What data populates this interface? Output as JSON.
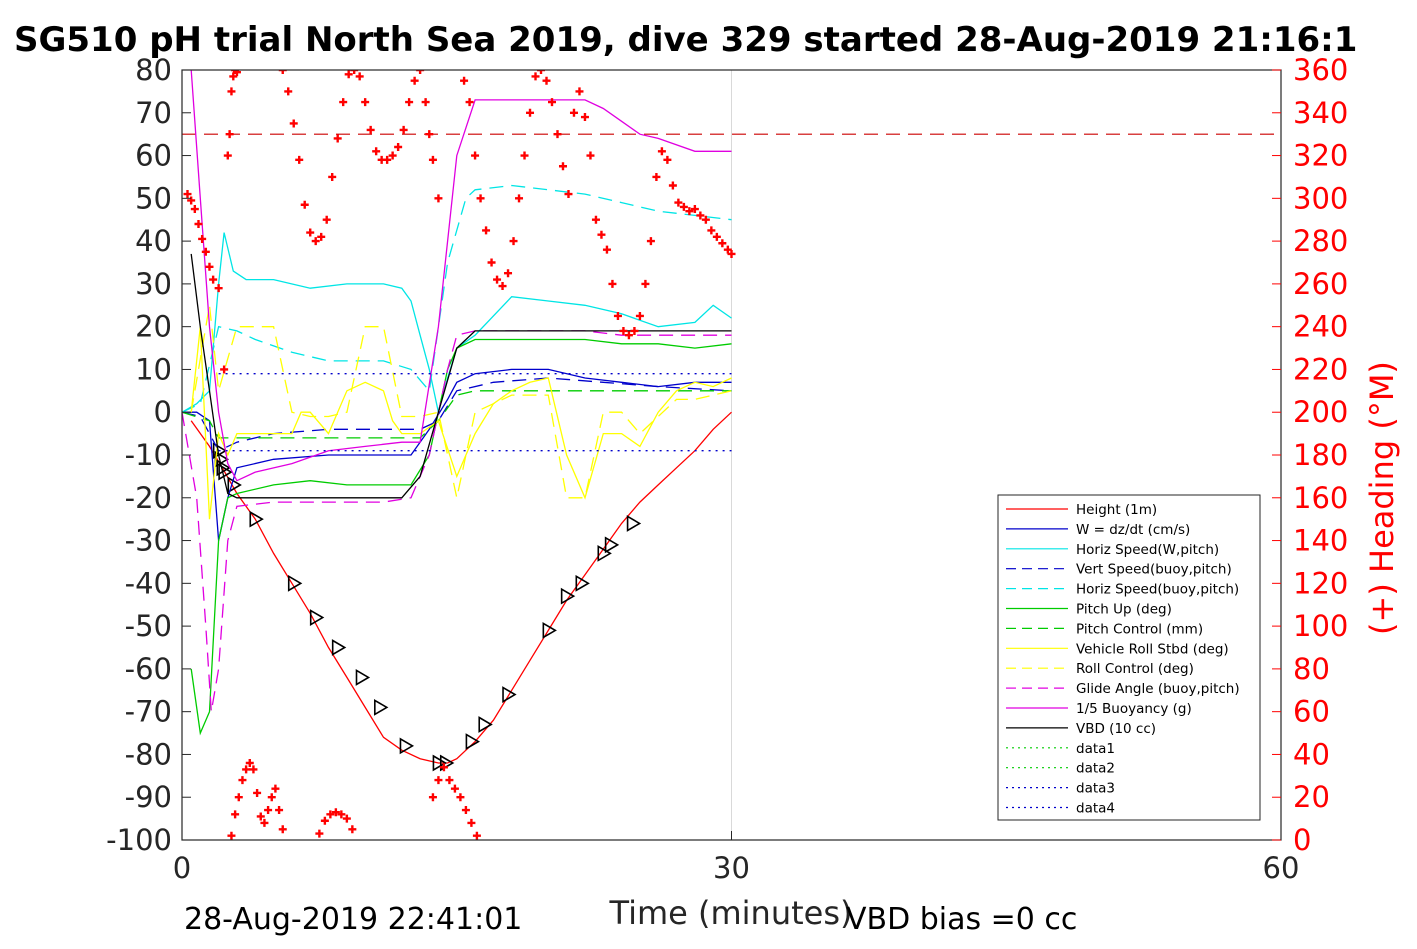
{
  "chart_data": {
    "type": "line",
    "title": "SG510 pH trial North Sea 2019, dive 329 started 28-Aug-2019 21:16:1",
    "xlabel": "Time (minutes)",
    "ylabel_left": "",
    "ylabel_right": "(+) Heading (°M)",
    "xlim": [
      0,
      60
    ],
    "ylim_left": [
      -100,
      80
    ],
    "ylim_right": [
      0,
      360
    ],
    "x_ticks": [
      "0",
      "30",
      "60"
    ],
    "y_ticks_left": [
      "80",
      "70",
      "60",
      "50",
      "40",
      "30",
      "20",
      "10",
      "0",
      "-10",
      "-20",
      "-30",
      "-40",
      "-50",
      "-60",
      "-70",
      "-80",
      "-90",
      "-100"
    ],
    "y_ticks_right": [
      "360",
      "340",
      "320",
      "300",
      "280",
      "260",
      "240",
      "220",
      "200",
      "180",
      "160",
      "140",
      "120",
      "100",
      "80",
      "60",
      "40",
      "20",
      "0"
    ],
    "grid": "x-only",
    "legend_position": "bottom-right",
    "footer_left": "28-Aug-2019 22:41:01",
    "footer_right": "VBD bias =0 cc",
    "colors": {
      "axis_right": "#ff0000",
      "axis_left": "#222222"
    },
    "heading_reference": {
      "value": 330,
      "axis": "right",
      "color": "#cc0000",
      "style": "dashed"
    },
    "legend": [
      {
        "name": "Height (1m)",
        "color": "#ff0000",
        "style": "solid"
      },
      {
        "name": "W = dz/dt (cm/s)",
        "color": "#0000cc",
        "style": "solid"
      },
      {
        "name": "Horiz Speed(W,pitch)",
        "color": "#00e5e5",
        "style": "solid"
      },
      {
        "name": "Vert Speed(buoy,pitch)",
        "color": "#0000cc",
        "style": "dashed"
      },
      {
        "name": "Horiz Speed(buoy,pitch)",
        "color": "#00e5e5",
        "style": "dashed"
      },
      {
        "name": "Pitch Up (deg)",
        "color": "#00cc00",
        "style": "solid"
      },
      {
        "name": "Pitch Control (mm)",
        "color": "#00cc00",
        "style": "dashed"
      },
      {
        "name": "Vehicle Roll Stbd (deg)",
        "color": "#ffff00",
        "style": "solid"
      },
      {
        "name": "Roll Control (deg)",
        "color": "#ffff00",
        "style": "dashed"
      },
      {
        "name": "Glide Angle (buoy,pitch)",
        "color": "#e000e0",
        "style": "dashed"
      },
      {
        "name": "1/5 Buoyancy (g)",
        "color": "#e000e0",
        "style": "solid"
      },
      {
        "name": "VBD (10 cc)",
        "color": "#000000",
        "style": "solid"
      },
      {
        "name": "data1",
        "color": "#00cc00",
        "style": "dotted"
      },
      {
        "name": "data2",
        "color": "#00cc00",
        "style": "dotted"
      },
      {
        "name": "data3",
        "color": "#0000cc",
        "style": "dotted"
      },
      {
        "name": "data4",
        "color": "#0000cc",
        "style": "dotted"
      }
    ],
    "series": [
      {
        "key": "height",
        "axis": "left",
        "color": "#ff0000",
        "style": "solid",
        "x": [
          0.5,
          1.5,
          2.2,
          3,
          4,
          5,
          6,
          7,
          8,
          9,
          10,
          11,
          12,
          13,
          14,
          14.5,
          15,
          16,
          17,
          18,
          19,
          20,
          21,
          22,
          23,
          24,
          25,
          26,
          27,
          28,
          29,
          30
        ],
        "y": [
          -2,
          -8,
          -13,
          -19,
          -25,
          -33,
          -40,
          -47,
          -55,
          -62,
          -69,
          -76,
          -79,
          -81,
          -82,
          -82,
          -81,
          -77,
          -72,
          -65,
          -58,
          -51,
          -44,
          -38,
          -32,
          -26,
          -21,
          -17,
          -13,
          -9,
          -4,
          0
        ]
      },
      {
        "key": "glider-markers",
        "axis": "left",
        "color": "#000000",
        "style": "marker",
        "x": [
          2.0,
          2.1,
          2.2,
          2.3,
          2.8,
          4.0,
          6.1,
          7.3,
          8.5,
          9.8,
          10.8,
          12.2,
          14.0,
          14.4,
          15.8,
          16.5,
          17.8,
          20.0,
          21.0,
          21.8,
          23.0,
          23.4,
          24.6
        ],
        "y": [
          -9,
          -11,
          -13,
          -14,
          -17,
          -25,
          -40,
          -48,
          -55,
          -62,
          -69,
          -78,
          -82,
          -82,
          -77,
          -73,
          -66,
          -51,
          -43,
          -40,
          -33,
          -31,
          -26
        ]
      },
      {
        "key": "w-dzdt",
        "axis": "left",
        "color": "#0000cc",
        "style": "solid",
        "x": [
          0,
          0.8,
          1.5,
          2,
          2.5,
          3,
          5,
          8,
          11,
          12.5,
          13.5,
          14.5,
          15,
          16,
          18,
          20,
          22,
          24,
          26,
          28,
          30
        ],
        "y": [
          0,
          0,
          -2,
          -30,
          -20,
          -13,
          -11,
          -10,
          -10,
          -10,
          -4,
          3,
          7,
          9,
          10,
          10,
          8,
          7,
          6,
          7,
          7
        ]
      },
      {
        "key": "horiz-speed-w",
        "axis": "left",
        "color": "#00e5e5",
        "style": "solid",
        "x": [
          0,
          0.8,
          1.5,
          2,
          2.3,
          2.8,
          3.5,
          5,
          7,
          9,
          11,
          12,
          12.5,
          13,
          13.5,
          14,
          14.5,
          15,
          16,
          18,
          20,
          22,
          24,
          26,
          28,
          29,
          30
        ],
        "y": [
          0,
          2,
          5,
          30,
          42,
          33,
          31,
          31,
          29,
          30,
          30,
          29,
          26,
          18,
          10,
          0,
          8,
          15,
          18,
          27,
          26,
          25,
          23,
          20,
          21,
          25,
          22
        ]
      },
      {
        "key": "vert-speed-buoy",
        "axis": "left",
        "color": "#0000cc",
        "style": "dashed",
        "x": [
          0,
          1,
          2,
          3,
          5,
          8,
          11,
          13,
          14,
          15,
          17,
          20,
          23,
          26,
          30
        ],
        "y": [
          0,
          -1,
          -9,
          -7,
          -5,
          -4,
          -4,
          -4,
          -2,
          5,
          7,
          8,
          7,
          6,
          5
        ]
      },
      {
        "key": "horiz-speed-buoy",
        "axis": "left",
        "color": "#00e5e5",
        "style": "dashed",
        "x": [
          0,
          1,
          2,
          3,
          4,
          6,
          8,
          11,
          12.5,
          13.5,
          14.5,
          15.5,
          16,
          18,
          20,
          22,
          24,
          26,
          28,
          30
        ],
        "y": [
          0,
          2,
          20,
          19,
          17,
          14,
          12,
          12,
          10,
          5,
          35,
          50,
          52,
          53,
          52,
          51,
          49,
          47,
          46,
          45
        ]
      },
      {
        "key": "pitch-up",
        "axis": "left",
        "color": "#00cc00",
        "style": "solid",
        "x": [
          0.5,
          1,
          1.5,
          2,
          2.5,
          3,
          5,
          7,
          9,
          11,
          12.5,
          13.5,
          14.5,
          15,
          16,
          18,
          20,
          22,
          24,
          26,
          28,
          30
        ],
        "y": [
          -60,
          -75,
          -70,
          -30,
          -20,
          -19,
          -17,
          -16,
          -17,
          -17,
          -17,
          -10,
          10,
          15,
          17,
          17,
          17,
          17,
          16,
          16,
          15,
          16
        ]
      },
      {
        "key": "pitch-control",
        "axis": "left",
        "color": "#00cc00",
        "style": "dashed",
        "x": [
          0,
          1.5,
          2,
          5,
          8,
          11,
          13,
          14,
          15,
          16,
          18,
          20,
          22,
          24,
          26,
          28,
          30
        ],
        "y": [
          0,
          -2,
          -6,
          -6,
          -6,
          -6,
          -6,
          -2,
          4,
          5,
          5,
          5,
          5,
          5,
          5,
          5,
          5
        ]
      },
      {
        "key": "vehicle-roll",
        "axis": "left",
        "color": "#ffff00",
        "style": "solid",
        "x": [
          0.5,
          1,
          1.5,
          2,
          2.5,
          3,
          4,
          5,
          6,
          6.5,
          7,
          8,
          9,
          10,
          11,
          11.5,
          12,
          13,
          14,
          15,
          16,
          17,
          18,
          19,
          20,
          21,
          22,
          23,
          24,
          25,
          26,
          27,
          28,
          29,
          30
        ],
        "y": [
          0,
          20,
          -25,
          -5,
          -10,
          -5,
          -5,
          -5,
          -5,
          0,
          0,
          -5,
          5,
          7,
          5,
          -2,
          -5,
          -5,
          -2,
          -15,
          -5,
          2,
          5,
          7,
          8,
          -10,
          -20,
          -5,
          -5,
          -8,
          0,
          5,
          7,
          6,
          8
        ]
      },
      {
        "key": "roll-control",
        "axis": "left",
        "color": "#ffff00",
        "style": "dashed",
        "x": [
          0.5,
          1.5,
          2,
          3,
          4,
          5,
          6,
          7,
          8,
          9,
          10,
          11,
          12,
          13,
          14,
          15,
          16,
          17,
          18,
          19,
          20,
          21,
          22,
          23,
          24,
          25,
          26,
          27,
          28,
          29,
          30
        ],
        "y": [
          0,
          25,
          5,
          20,
          20,
          20,
          0,
          -1,
          -1,
          0,
          20,
          20,
          -1,
          -1,
          0,
          -20,
          0,
          2,
          4,
          4,
          4,
          -20,
          -20,
          0,
          0,
          -5,
          -1,
          3,
          3,
          4,
          5
        ]
      },
      {
        "key": "glide-angle",
        "axis": "left",
        "color": "#e000e0",
        "style": "dashed",
        "x": [
          0,
          0.8,
          1.3,
          1.6,
          2,
          2.5,
          3,
          5,
          8,
          11,
          12.5,
          13.5,
          14.5,
          15,
          16,
          18,
          20,
          22,
          24,
          26,
          28,
          30
        ],
        "y": [
          0,
          -20,
          -50,
          -70,
          -60,
          -30,
          -22,
          -21,
          -21,
          -21,
          -20,
          -10,
          10,
          18,
          19,
          19,
          19,
          19,
          18,
          18,
          18,
          18
        ]
      },
      {
        "key": "buoyancy",
        "axis": "left",
        "color": "#e000e0",
        "style": "solid",
        "x": [
          0.5,
          1,
          1.5,
          2,
          2.5,
          3,
          4,
          6,
          8,
          10,
          12,
          13,
          14,
          15,
          16,
          18,
          20,
          22,
          23,
          24,
          25,
          26,
          28,
          30
        ],
        "y": [
          80,
          50,
          20,
          0,
          -12,
          -16,
          -14,
          -12,
          -9,
          -8,
          -7,
          -7,
          20,
          60,
          73,
          73,
          73,
          73,
          71,
          68,
          65,
          64,
          61,
          61
        ]
      },
      {
        "key": "vbd",
        "axis": "left",
        "color": "#000000",
        "style": "solid",
        "x": [
          0.5,
          1,
          1.5,
          2,
          2.5,
          3,
          5,
          8,
          11,
          12,
          13,
          14,
          15,
          16,
          18,
          20,
          22,
          24,
          26,
          28,
          30
        ],
        "y": [
          37,
          20,
          5,
          -10,
          -19,
          -20,
          -20,
          -20,
          -20,
          -20,
          -15,
          0,
          15,
          19,
          19,
          19,
          19,
          19,
          19,
          19,
          19
        ]
      },
      {
        "key": "data-dotted-upper",
        "axis": "left",
        "color": "#0000cc",
        "style": "dotted",
        "x": [
          2,
          30
        ],
        "y": [
          9,
          9
        ]
      },
      {
        "key": "data-dotted-lower",
        "axis": "left",
        "color": "#0000cc",
        "style": "dotted",
        "x": [
          2,
          30
        ],
        "y": [
          -9,
          -9
        ]
      },
      {
        "key": "heading",
        "axis": "right",
        "color": "#ff0000",
        "style": "marker",
        "x": [
          0.3,
          0.5,
          0.7,
          0.9,
          1.1,
          1.3,
          1.5,
          1.7,
          2.0,
          2.3,
          2.5,
          2.6,
          2.7,
          2.8,
          2.9,
          3.0,
          5.5,
          5.8,
          6.1,
          6.4,
          6.7,
          7.0,
          7.3,
          7.6,
          7.9,
          8.2,
          8.5,
          8.8,
          9.1,
          9.4,
          9.7,
          10.0,
          10.3,
          10.6,
          10.9,
          11.2,
          11.5,
          11.8,
          12.1,
          12.4,
          12.7,
          13.0,
          13.3,
          13.5,
          13.7,
          14.0,
          15.4,
          15.7,
          16.0,
          16.3,
          16.6,
          16.9,
          17.2,
          17.5,
          17.8,
          18.1,
          18.4,
          18.7,
          19.0,
          19.3,
          19.6,
          19.9,
          20.2,
          20.5,
          20.8,
          21.1,
          21.4,
          21.7,
          22.0,
          22.3,
          22.6,
          22.9,
          23.2,
          23.5,
          23.8,
          24.1,
          24.4,
          24.7,
          25.0,
          25.3,
          25.6,
          25.9,
          26.2,
          26.5,
          26.8,
          27.1,
          27.4,
          27.7,
          28.0,
          28.3,
          28.6,
          28.9,
          29.2,
          29.5,
          29.8,
          30.0
        ],
        "y": [
          302,
          299,
          295,
          288,
          281,
          275,
          268,
          262,
          258,
          220,
          320,
          330,
          350,
          357,
          360,
          359,
          360,
          350,
          335,
          318,
          297,
          284,
          280,
          282,
          290,
          310,
          328,
          345,
          358,
          360,
          357,
          345,
          332,
          322,
          318,
          318,
          320,
          324,
          332,
          345,
          355,
          360,
          345,
          330,
          318,
          300,
          355,
          345,
          320,
          300,
          285,
          270,
          262,
          259,
          265,
          280,
          300,
          320,
          340,
          357,
          360,
          355,
          345,
          330,
          315,
          302,
          340,
          350,
          338,
          320,
          290,
          283,
          276,
          260,
          245,
          238,
          236,
          238,
          245,
          260,
          280,
          310,
          322,
          318,
          306,
          298,
          296,
          294,
          295,
          292,
          290,
          285,
          282,
          279,
          276,
          274
        ]
      },
      {
        "key": "heading-bottom",
        "axis": "right",
        "color": "#ff0000",
        "style": "marker",
        "x": [
          2.7,
          2.9,
          3.1,
          3.3,
          3.5,
          3.7,
          3.9,
          4.1,
          4.3,
          4.5,
          4.7,
          4.9,
          5.1,
          5.3,
          5.5,
          7.5,
          7.8,
          8.1,
          8.4,
          8.7,
          9.0,
          9.3,
          13.7,
          14.0,
          14.3,
          14.6,
          14.9,
          15.2,
          15.5,
          15.8,
          16.1
        ],
        "y": [
          2,
          12,
          20,
          28,
          33,
          36,
          33,
          22,
          11,
          8,
          14,
          20,
          24,
          14,
          5,
          3,
          9,
          12,
          13,
          12,
          10,
          5,
          20,
          28,
          34,
          28,
          24,
          20,
          14,
          8,
          2
        ]
      }
    ]
  }
}
